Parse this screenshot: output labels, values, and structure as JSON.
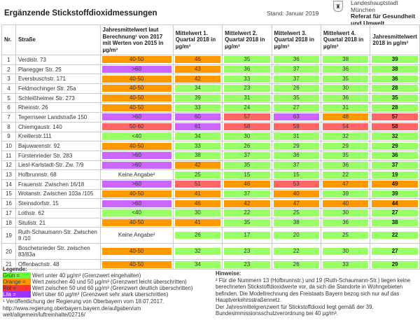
{
  "header": {
    "title": "Ergänzende Stickstoffdioxidmessungen",
    "stand": "Stand: Januar 2019",
    "org_line1": "Landeshauptstadt",
    "org_line2": "München",
    "org_line3": "Referat für Gesundheit",
    "org_line4": "und Umwelt",
    "logo_icon": "munich-coat-of-arms-icon"
  },
  "colors": {
    "green": "#99ff66",
    "orange": "#ff9900",
    "red": "#ff6666",
    "lilac": "#cc66ff"
  },
  "table": {
    "columns": [
      "Nr.",
      "Straße",
      "Jahresmittelwert laut Berechnung¹ von 2017 mit Werten von 2015 in µg/m³",
      "Mittelwert 1. Quartal 2018 in µg/m³",
      "Mittelwert 2. Quartal 2018 in µg/m³",
      "Mittelwert 3. Quartal 2018 in µg/m³",
      "Mittelwert 4. Quartal 2018 in µg/m³",
      "Jahresmittelwert 2018 in µg/m³"
    ],
    "rows": [
      {
        "nr": "1",
        "street": "Verdistr. 73",
        "calc": "40-50",
        "calc_c": "o",
        "q1": "46",
        "q1_c": "o",
        "q2": "35",
        "q2_c": "g",
        "q3": "36",
        "q3_c": "g",
        "q4": "38",
        "q4_c": "g",
        "year": "39",
        "year_c": "g"
      },
      {
        "nr": "2",
        "street": "Planegger Str. 25",
        "calc": ">60",
        "calc_c": "l",
        "q1": "43",
        "q1_c": "o",
        "q2": "36",
        "q2_c": "g",
        "q3": "37",
        "q3_c": "g",
        "q4": "36",
        "q4_c": "g",
        "year": "38",
        "year_c": "g"
      },
      {
        "nr": "3",
        "street": "Eversbuschstr. 171",
        "calc": "40-50",
        "calc_c": "o",
        "q1": "42",
        "q1_c": "o",
        "q2": "33",
        "q2_c": "g",
        "q3": "37",
        "q3_c": "g",
        "q4": "35",
        "q4_c": "g",
        "year": "36",
        "year_c": "g"
      },
      {
        "nr": "4",
        "street": "Feldmochinger Str. 25a",
        "calc": "40-50",
        "calc_c": "o",
        "q1": "34",
        "q1_c": "g",
        "q2": "23",
        "q2_c": "g",
        "q3": "26",
        "q3_c": "g",
        "q4": "30",
        "q4_c": "g",
        "year": "28",
        "year_c": "g"
      },
      {
        "nr": "5",
        "street": "Schleißheimer Str. 273",
        "calc": "40-50",
        "calc_c": "o",
        "q1": "39",
        "q1_c": "g",
        "q2": "31",
        "q2_c": "g",
        "q3": "35",
        "q3_c": "g",
        "q4": "36",
        "q4_c": "g",
        "year": "35",
        "year_c": "g"
      },
      {
        "nr": "6",
        "street": "Rheinstr. 26",
        "calc": "40-50",
        "calc_c": "o",
        "q1": "33",
        "q1_c": "g",
        "q2": "24",
        "q2_c": "g",
        "q3": "27",
        "q3_c": "g",
        "q4": "31",
        "q4_c": "g",
        "year": "28",
        "year_c": "g"
      },
      {
        "nr": "7",
        "street": "Tegernseer Landstraße 150",
        "calc": ">60",
        "calc_c": "l",
        "q1": "60",
        "q1_c": "l",
        "q2": "57",
        "q2_c": "r",
        "q3": "63",
        "q3_c": "l",
        "q4": "48",
        "q4_c": "o",
        "year": "57",
        "year_c": "r"
      },
      {
        "nr": "8",
        "street": "Chiemgaustr. 140",
        "calc": "50-60",
        "calc_c": "r",
        "q1": "61",
        "q1_c": "l",
        "q2": "58",
        "q2_c": "r",
        "q3": "59",
        "q3_c": "r",
        "q4": "54",
        "q4_c": "r",
        "year": "58",
        "year_c": "r"
      },
      {
        "nr": "9",
        "street": "Kreillerstr.111",
        "calc": "<40",
        "calc_c": "g",
        "q1": "34",
        "q1_c": "g",
        "q2": "30",
        "q2_c": "g",
        "q3": "31",
        "q3_c": "g",
        "q4": "32",
        "q4_c": "g",
        "year": "32",
        "year_c": "g"
      },
      {
        "nr": "10",
        "street": "Bajuwarenstr. 92",
        "calc": "40-50",
        "calc_c": "o",
        "q1": "33",
        "q1_c": "g",
        "q2": "26",
        "q2_c": "g",
        "q3": "29",
        "q3_c": "g",
        "q4": "29",
        "q4_c": "g",
        "year": "29",
        "year_c": "g"
      },
      {
        "nr": "11",
        "street": "Fürstenrieder Str. 283",
        "calc": ">60",
        "calc_c": "l",
        "q1": "38",
        "q1_c": "g",
        "q2": "37",
        "q2_c": "g",
        "q3": "36",
        "q3_c": "g",
        "q4": "35",
        "q4_c": "g",
        "year": "36",
        "year_c": "g"
      },
      {
        "nr": "12",
        "street": "Liesl-Karlstadt-Str. Zw. 7/9",
        "calc": ">60",
        "calc_c": "l",
        "q1": "42",
        "q1_c": "o",
        "q2": "35",
        "q2_c": "g",
        "q3": "37",
        "q3_c": "g",
        "q4": "36",
        "q4_c": "g",
        "year": "37",
        "year_c": "g"
      },
      {
        "nr": "13",
        "street": "Hofbrunnstr. 68",
        "calc": "Keine Angabe²",
        "calc_c": "none",
        "q1": "25",
        "q1_c": "g",
        "q2": "15",
        "q2_c": "g",
        "q3": "15",
        "q3_c": "g",
        "q4": "22",
        "q4_c": "g",
        "year": "19",
        "year_c": "g"
      },
      {
        "nr": "14",
        "street": "Frauenstr. Zwischen 16/18",
        "calc": ">60",
        "calc_c": "l",
        "q1": "51",
        "q1_c": "r",
        "q2": "46",
        "q2_c": "o",
        "q3": "53",
        "q3_c": "r",
        "q4": "47",
        "q4_c": "o",
        "year": "49",
        "year_c": "o"
      },
      {
        "nr": "15",
        "street": "Wotanstr. Zwischen 103a /105",
        "calc": "40-50",
        "calc_c": "o",
        "q1": "41",
        "q1_c": "o",
        "q2": "37",
        "q2_c": "g",
        "q3": "40",
        "q3_c": "o",
        "q4": "39",
        "q4_c": "g",
        "year": "39",
        "year_c": "g"
      },
      {
        "nr": "16",
        "street": "Steinsdorfstr. 15",
        "calc": ">60",
        "calc_c": "l",
        "q1": "46",
        "q1_c": "o",
        "q2": "42",
        "q2_c": "o",
        "q3": "47",
        "q3_c": "o",
        "q4": "40",
        "q4_c": "o",
        "year": "44",
        "year_c": "o"
      },
      {
        "nr": "17",
        "street": "Lothstr. 62",
        "calc": "<40",
        "calc_c": "g",
        "q1": "30",
        "q1_c": "g",
        "q2": "22",
        "q2_c": "g",
        "q3": "25",
        "q3_c": "g",
        "q4": "30",
        "q4_c": "g",
        "year": "27",
        "year_c": "g"
      },
      {
        "nr": "18",
        "street": "Situlistr. 21",
        "calc": "40-50",
        "calc_c": "o",
        "q1": "41",
        "q1_c": "o",
        "q2": "35",
        "q2_c": "g",
        "q3": "38",
        "q3_c": "g",
        "q4": "36",
        "q4_c": "g",
        "year": "38",
        "year_c": "g"
      },
      {
        "nr": "19",
        "street": "Ruth-Schaumann-Str. Zwischen 8 /10",
        "calc": "Keine Angabe²",
        "calc_c": "none",
        "q1": "26",
        "q1_c": "g",
        "q2": "17",
        "q2_c": "g",
        "q3": "20",
        "q3_c": "g",
        "q4": "25",
        "q4_c": "g",
        "year": "22",
        "year_c": "g",
        "tall": true
      },
      {
        "nr": "20",
        "street": "Boschetsrieder Str. zwischen 83/83a",
        "calc": "40-50",
        "calc_c": "o",
        "q1": "32",
        "q1_c": "g",
        "q2": "23",
        "q2_c": "g",
        "q3": "22",
        "q3_c": "g",
        "q4": "30",
        "q4_c": "g",
        "year": "27",
        "year_c": "g",
        "tall": true
      },
      {
        "nr": "21",
        "street": "Offenbachstr. 48",
        "calc": "40-50",
        "calc_c": "o",
        "q1": "34",
        "q1_c": "g",
        "q2": "23",
        "q2_c": "g",
        "q3": "26",
        "q3_c": "g",
        "q4": "33",
        "q4_c": "g",
        "year": "29",
        "year_c": "g"
      }
    ]
  },
  "legend": {
    "heading": "Legende:",
    "items": [
      {
        "label": "Grün",
        "text": "Wert unter 40 µg/m³ (Grenzwert eingehalten)"
      },
      {
        "label": "Orange",
        "text": "Wert zwischen 40 und 50 µg/m³ (Grenzwert leicht überschritten)"
      },
      {
        "label": "Rot",
        "text": "Wert zwischen 50 und 60 µg/m³ (Grenzwert deutlich überschritten)"
      },
      {
        "label": "Lila",
        "text": "Wert über 60 µg/m³ (Grenzwert sehr stark überschritten)"
      }
    ]
  },
  "footnote": {
    "line1": "¹ Veröffentlichung der Regierung von Oberbayern vom 18.07.2017.",
    "line2": "http://www.regierung.oberbayern.bayern.de/aufgaben/um",
    "line3": "welt/allgemein/luftreinhalte/02716/"
  },
  "hints": {
    "heading": "Hinweise:",
    "p1": "² Für die Nummern 13 (Hofbrunnstr.) und 19 (Ruth-Schaumann-Str.) liegen keine berechneten Stickstoffdioxidwerte vor, da sich die Standorte in Wohngebieten befinden. Die Modellrechnung des Freistaats Bayern bezog sich nur auf das Hauptverkehrsstraßennetz.",
    "p2": "Der Jahresmittelgrenzwert für Stickstoffdioxid liegt gemäß der 39. Bundesimmissionsschutzverordnung bei 40 µg/m³."
  }
}
